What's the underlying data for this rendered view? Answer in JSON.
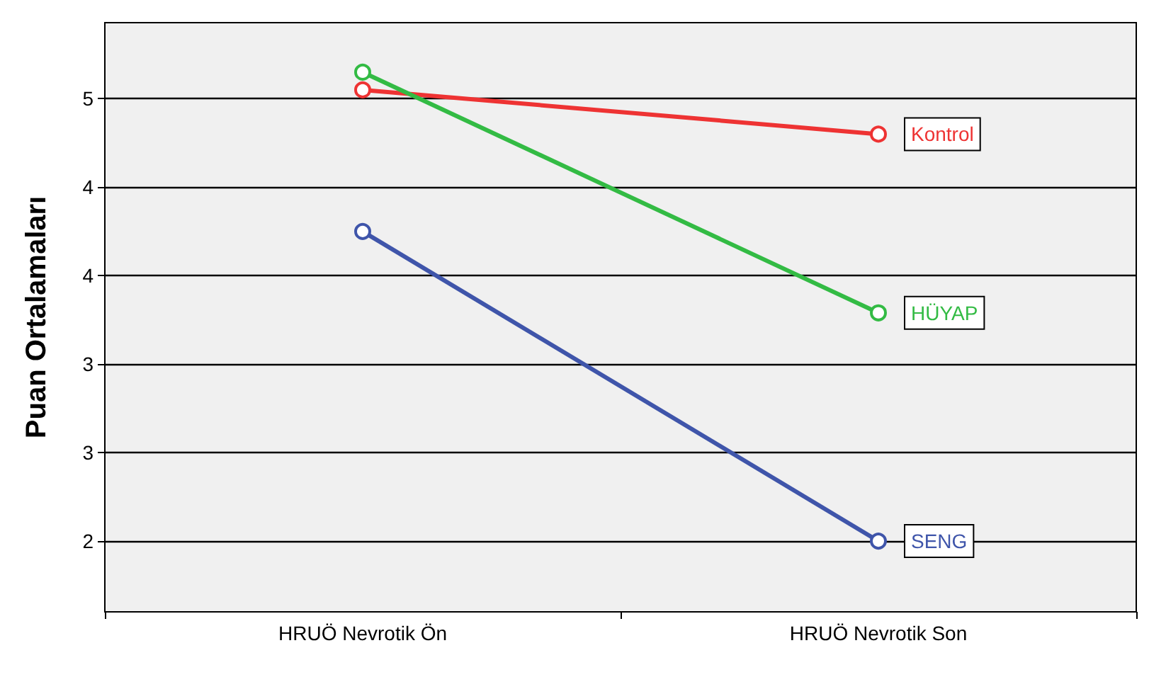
{
  "chart_data": {
    "type": "line",
    "ylabel": "Puan Ortalamaları",
    "categories": [
      "HRUÖ Nevrotik Ön",
      "HRUÖ Nevrotik Son"
    ],
    "series": [
      {
        "name": "Kontrol",
        "color": "#ee3333",
        "values": [
          4.55,
          4.3
        ]
      },
      {
        "name": "HÜYAP",
        "color": "#33bb44",
        "values": [
          4.65,
          3.29
        ]
      },
      {
        "name": "SENG",
        "color": "#3f55aa",
        "values": [
          3.75,
          2.0
        ]
      }
    ],
    "ylim": [
      1.6,
      4.93
    ],
    "yticks": [
      {
        "value": 2,
        "label": "2"
      },
      {
        "value": 2.5,
        "label": "3"
      },
      {
        "value": 3,
        "label": "3"
      },
      {
        "value": 3.5,
        "label": "4"
      },
      {
        "value": 4,
        "label": "4"
      },
      {
        "value": 4.5,
        "label": "5"
      }
    ],
    "grid": "y",
    "legend": false,
    "marker": "circle",
    "line_style": "solid"
  }
}
